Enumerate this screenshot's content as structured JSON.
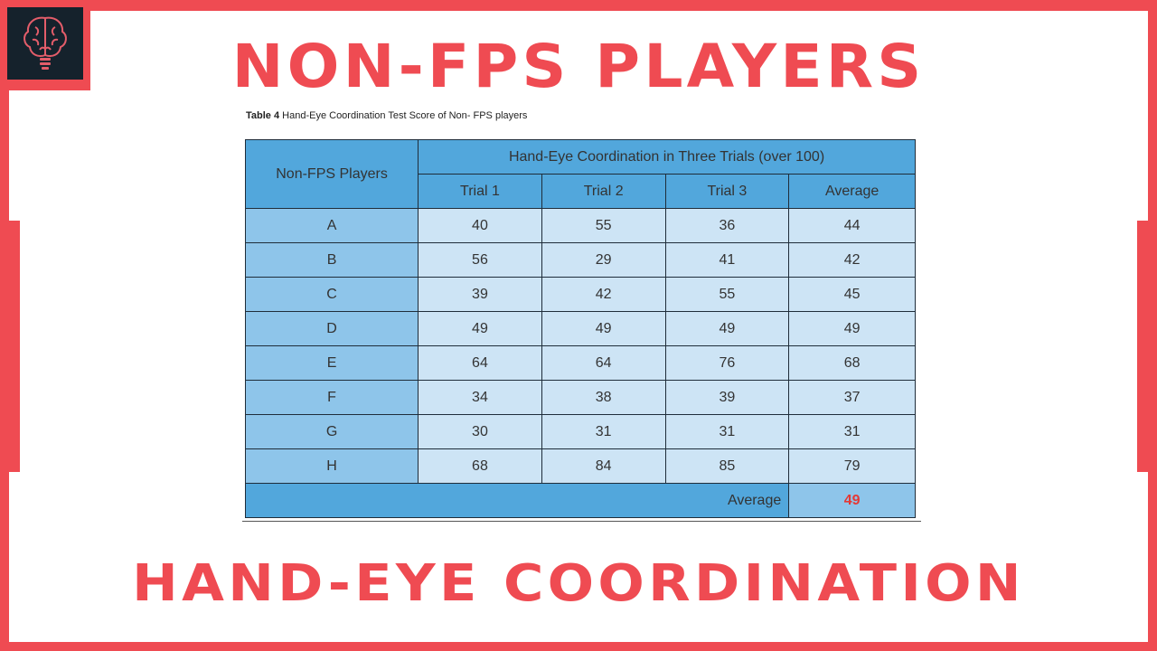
{
  "headline_top": "NON-FPS PLAYERS",
  "headline_bottom": "HAND-EYE COORDINATION",
  "caption": {
    "label": "Table 4",
    "text": " Hand-Eye Coordination Test Score of Non- FPS players"
  },
  "table": {
    "corner_header": "Non-FPS Players",
    "group_header": "Hand-Eye Coordination in Three Trials (over 100)",
    "columns": [
      "Trial 1",
      "Trial 2",
      "Trial 3",
      "Average"
    ],
    "rows": [
      {
        "player": "A",
        "values": [
          "40",
          "55",
          "36",
          "44"
        ]
      },
      {
        "player": "B",
        "values": [
          "56",
          "29",
          "41",
          "42"
        ]
      },
      {
        "player": "C",
        "values": [
          "39",
          "42",
          "55",
          "45"
        ]
      },
      {
        "player": "D",
        "values": [
          "49",
          "49",
          "49",
          "49"
        ]
      },
      {
        "player": "E",
        "values": [
          "64",
          "64",
          "76",
          "68"
        ]
      },
      {
        "player": "F",
        "values": [
          "34",
          "38",
          "39",
          "37"
        ]
      },
      {
        "player": "G",
        "values": [
          "30",
          "31",
          "31",
          "31"
        ]
      },
      {
        "player": "H",
        "values": [
          "68",
          "84",
          "85",
          "79"
        ]
      }
    ],
    "footer_label": "Average",
    "footer_value": "49"
  },
  "colors": {
    "accent": "#ef4b52",
    "header_blue": "#52a7dc",
    "label_blue": "#8ec5ea",
    "cell_blue": "#cde4f5",
    "highlight_red": "#e53935"
  },
  "icons": {
    "logo": "brain-lightbulb-icon"
  }
}
